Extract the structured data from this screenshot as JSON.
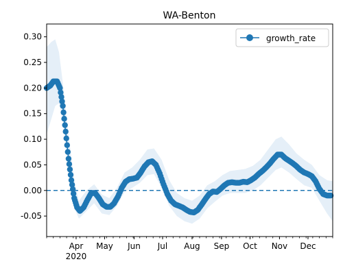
{
  "chart_data": {
    "type": "line",
    "title": "WA-Benton",
    "xlabel": "",
    "ylabel": "",
    "x_range": [
      "2020-03-01",
      "2020-12-27"
    ],
    "ylim": [
      -0.09,
      0.325
    ],
    "y_ticks": [
      -0.05,
      0.0,
      0.05,
      0.1,
      0.15,
      0.2,
      0.25,
      0.3
    ],
    "x_ticks": [
      {
        "date": "2020-04-01",
        "label": "Apr",
        "sublabel": "2020"
      },
      {
        "date": "2020-05-01",
        "label": "May",
        "sublabel": ""
      },
      {
        "date": "2020-06-01",
        "label": "Jun",
        "sublabel": ""
      },
      {
        "date": "2020-07-01",
        "label": "Jul",
        "sublabel": ""
      },
      {
        "date": "2020-08-01",
        "label": "Aug",
        "sublabel": ""
      },
      {
        "date": "2020-09-01",
        "label": "Sep",
        "sublabel": ""
      },
      {
        "date": "2020-10-01",
        "label": "Oct",
        "sublabel": ""
      },
      {
        "date": "2020-11-01",
        "label": "Nov",
        "sublabel": ""
      },
      {
        "date": "2020-12-01",
        "label": "Dec",
        "sublabel": ""
      }
    ],
    "grid": false,
    "legend_position": "top-right",
    "colors": {
      "line": "#1f77b4",
      "band": "#dce9f5",
      "reference": "#1f77b4"
    },
    "reference_line": {
      "y": 0.0,
      "style": "dashed"
    },
    "series": [
      {
        "name": "growth_rate",
        "marker": "circle",
        "points": [
          [
            "2020-03-01",
            0.2
          ],
          [
            "2020-03-05",
            0.205
          ],
          [
            "2020-03-08",
            0.213
          ],
          [
            "2020-03-12",
            0.213
          ],
          [
            "2020-03-15",
            0.2
          ],
          [
            "2020-03-18",
            0.165
          ],
          [
            "2020-03-21",
            0.115
          ],
          [
            "2020-03-24",
            0.062
          ],
          [
            "2020-03-27",
            0.02
          ],
          [
            "2020-03-30",
            -0.015
          ],
          [
            "2020-04-02",
            -0.033
          ],
          [
            "2020-04-05",
            -0.04
          ],
          [
            "2020-04-09",
            -0.033
          ],
          [
            "2020-04-13",
            -0.018
          ],
          [
            "2020-04-17",
            -0.005
          ],
          [
            "2020-04-21",
            -0.005
          ],
          [
            "2020-04-25",
            -0.015
          ],
          [
            "2020-04-29",
            -0.027
          ],
          [
            "2020-05-03",
            -0.032
          ],
          [
            "2020-05-07",
            -0.032
          ],
          [
            "2020-05-11",
            -0.025
          ],
          [
            "2020-05-15",
            -0.012
          ],
          [
            "2020-05-19",
            0.005
          ],
          [
            "2020-05-23",
            0.017
          ],
          [
            "2020-05-27",
            0.022
          ],
          [
            "2020-05-31",
            0.023
          ],
          [
            "2020-06-04",
            0.025
          ],
          [
            "2020-06-08",
            0.035
          ],
          [
            "2020-06-12",
            0.047
          ],
          [
            "2020-06-16",
            0.055
          ],
          [
            "2020-06-20",
            0.057
          ],
          [
            "2020-06-24",
            0.05
          ],
          [
            "2020-06-28",
            0.033
          ],
          [
            "2020-07-02",
            0.012
          ],
          [
            "2020-07-06",
            -0.007
          ],
          [
            "2020-07-10",
            -0.02
          ],
          [
            "2020-07-14",
            -0.027
          ],
          [
            "2020-07-18",
            -0.03
          ],
          [
            "2020-07-22",
            -0.033
          ],
          [
            "2020-07-26",
            -0.038
          ],
          [
            "2020-07-30",
            -0.042
          ],
          [
            "2020-08-03",
            -0.043
          ],
          [
            "2020-08-07",
            -0.038
          ],
          [
            "2020-08-11",
            -0.028
          ],
          [
            "2020-08-15",
            -0.017
          ],
          [
            "2020-08-19",
            -0.007
          ],
          [
            "2020-08-23",
            -0.002
          ],
          [
            "2020-08-27",
            -0.003
          ],
          [
            "2020-08-31",
            0.003
          ],
          [
            "2020-09-04",
            0.01
          ],
          [
            "2020-09-08",
            0.015
          ],
          [
            "2020-09-12",
            0.016
          ],
          [
            "2020-09-16",
            0.015
          ],
          [
            "2020-09-20",
            0.015
          ],
          [
            "2020-09-24",
            0.017
          ],
          [
            "2020-09-28",
            0.016
          ],
          [
            "2020-10-02",
            0.02
          ],
          [
            "2020-10-06",
            0.025
          ],
          [
            "2020-10-10",
            0.032
          ],
          [
            "2020-10-14",
            0.038
          ],
          [
            "2020-10-18",
            0.045
          ],
          [
            "2020-10-22",
            0.053
          ],
          [
            "2020-10-26",
            0.062
          ],
          [
            "2020-10-30",
            0.07
          ],
          [
            "2020-11-03",
            0.07
          ],
          [
            "2020-11-07",
            0.063
          ],
          [
            "2020-11-11",
            0.058
          ],
          [
            "2020-11-15",
            0.053
          ],
          [
            "2020-11-19",
            0.047
          ],
          [
            "2020-11-23",
            0.04
          ],
          [
            "2020-11-27",
            0.035
          ],
          [
            "2020-12-01",
            0.032
          ],
          [
            "2020-12-05",
            0.028
          ],
          [
            "2020-12-09",
            0.018
          ],
          [
            "2020-12-13",
            0.003
          ],
          [
            "2020-12-17",
            -0.007
          ],
          [
            "2020-12-21",
            -0.01
          ],
          [
            "2020-12-25",
            -0.01
          ]
        ],
        "band": [
          [
            "2020-03-01",
            0.11,
            0.28
          ],
          [
            "2020-03-06",
            0.14,
            0.29
          ],
          [
            "2020-03-10",
            0.165,
            0.295
          ],
          [
            "2020-03-14",
            0.17,
            0.27
          ],
          [
            "2020-03-18",
            0.135,
            0.21
          ],
          [
            "2020-03-22",
            0.08,
            0.14
          ],
          [
            "2020-03-26",
            0.03,
            0.08
          ],
          [
            "2020-03-30",
            -0.035,
            0.02
          ],
          [
            "2020-04-04",
            -0.055,
            -0.02
          ],
          [
            "2020-04-12",
            -0.04,
            0.0
          ],
          [
            "2020-04-20",
            -0.025,
            0.012
          ],
          [
            "2020-04-28",
            -0.045,
            -0.008
          ],
          [
            "2020-05-06",
            -0.048,
            -0.015
          ],
          [
            "2020-05-14",
            -0.03,
            0.005
          ],
          [
            "2020-05-22",
            -0.003,
            0.035
          ],
          [
            "2020-05-30",
            0.005,
            0.045
          ],
          [
            "2020-06-07",
            0.015,
            0.06
          ],
          [
            "2020-06-15",
            0.03,
            0.08
          ],
          [
            "2020-06-22",
            0.032,
            0.082
          ],
          [
            "2020-06-30",
            0.005,
            0.06
          ],
          [
            "2020-07-08",
            -0.03,
            0.02
          ],
          [
            "2020-07-16",
            -0.05,
            -0.005
          ],
          [
            "2020-07-24",
            -0.06,
            -0.015
          ],
          [
            "2020-08-01",
            -0.065,
            -0.02
          ],
          [
            "2020-08-09",
            -0.055,
            -0.01
          ],
          [
            "2020-08-17",
            -0.035,
            0.01
          ],
          [
            "2020-08-25",
            -0.022,
            0.018
          ],
          [
            "2020-09-02",
            -0.01,
            0.03
          ],
          [
            "2020-09-10",
            -0.005,
            0.038
          ],
          [
            "2020-09-18",
            -0.005,
            0.04
          ],
          [
            "2020-09-26",
            -0.005,
            0.042
          ],
          [
            "2020-10-04",
            0.0,
            0.048
          ],
          [
            "2020-10-12",
            0.01,
            0.06
          ],
          [
            "2020-10-20",
            0.025,
            0.08
          ],
          [
            "2020-10-28",
            0.04,
            0.1
          ],
          [
            "2020-11-03",
            0.045,
            0.105
          ],
          [
            "2020-11-11",
            0.035,
            0.09
          ],
          [
            "2020-11-19",
            0.022,
            0.072
          ],
          [
            "2020-11-27",
            0.01,
            0.06
          ],
          [
            "2020-12-05",
            0.005,
            0.05
          ],
          [
            "2020-12-13",
            -0.02,
            0.03
          ],
          [
            "2020-12-21",
            -0.045,
            0.02
          ],
          [
            "2020-12-27",
            -0.06,
            0.018
          ]
        ]
      }
    ]
  }
}
